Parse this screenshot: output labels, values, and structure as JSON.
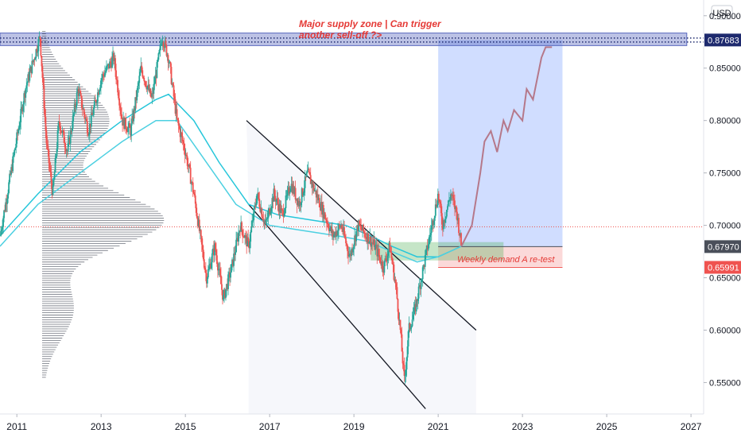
{
  "chart_data": {
    "type": "line",
    "title": "",
    "instrument_hint": "",
    "y_axis": {
      "unit_label": "USD",
      "ticks": [
        0.9,
        0.85,
        0.8,
        0.75,
        0.7,
        0.65,
        0.6,
        0.55
      ],
      "tick_labels": [
        "0.90000",
        "0.85000",
        "0.80000",
        "0.75000",
        "0.70000",
        "0.65000",
        "0.60000",
        "0.55000"
      ],
      "ylim": [
        0.52,
        0.915
      ]
    },
    "x_axis": {
      "ticks": [
        2011,
        2013,
        2015,
        2017,
        2019,
        2021,
        2023,
        2025,
        2027
      ],
      "tick_labels": [
        "2011",
        "2013",
        "2015",
        "2017",
        "2019",
        "2021",
        "2023",
        "2025",
        "2027"
      ],
      "xlim": [
        2010.6,
        2027.3
      ]
    },
    "price_series": {
      "name": "",
      "x": [
        2010.6,
        2010.9,
        2011.2,
        2011.55,
        2011.7,
        2011.85,
        2012.0,
        2012.2,
        2012.45,
        2012.7,
        2013.0,
        2013.3,
        2013.5,
        2013.7,
        2013.95,
        2014.2,
        2014.45,
        2014.6,
        2014.8,
        2015.0,
        2015.2,
        2015.5,
        2015.7,
        2015.9,
        2016.1,
        2016.3,
        2016.5,
        2016.7,
        2016.9,
        2017.1,
        2017.3,
        2017.5,
        2017.7,
        2017.9,
        2018.1,
        2018.3,
        2018.5,
        2018.7,
        2018.9,
        2019.1,
        2019.3,
        2019.5,
        2019.7,
        2019.85,
        2020.0,
        2020.1,
        2020.2,
        2020.3,
        2020.45,
        2020.6,
        2020.8,
        2021.0,
        2021.1,
        2021.3,
        2021.45,
        2021.55
      ],
      "y": [
        0.69,
        0.76,
        0.83,
        0.88,
        0.78,
        0.73,
        0.8,
        0.77,
        0.83,
        0.79,
        0.84,
        0.86,
        0.8,
        0.79,
        0.85,
        0.82,
        0.88,
        0.86,
        0.8,
        0.77,
        0.73,
        0.65,
        0.68,
        0.63,
        0.66,
        0.7,
        0.68,
        0.73,
        0.7,
        0.73,
        0.71,
        0.74,
        0.72,
        0.75,
        0.73,
        0.71,
        0.69,
        0.7,
        0.67,
        0.7,
        0.69,
        0.68,
        0.66,
        0.68,
        0.64,
        0.6,
        0.55,
        0.6,
        0.62,
        0.65,
        0.69,
        0.73,
        0.7,
        0.73,
        0.71,
        0.68
      ]
    },
    "projection_series": {
      "name": "",
      "x": [
        2021.55,
        2021.8,
        2022.0,
        2022.1,
        2022.25,
        2022.4,
        2022.55,
        2022.65,
        2022.8,
        2023.0,
        2023.1,
        2023.25,
        2023.45,
        2023.55,
        2023.7
      ],
      "y": [
        0.68,
        0.7,
        0.75,
        0.78,
        0.79,
        0.77,
        0.8,
        0.79,
        0.81,
        0.8,
        0.83,
        0.82,
        0.86,
        0.87,
        0.87
      ]
    },
    "moving_averages": [
      {
        "name": "",
        "color": "#26c6da",
        "x": [
          2010.6,
          2011.5,
          2012.5,
          2013.5,
          2014.3,
          2014.6,
          2015.2,
          2015.8,
          2016.5,
          2017.2,
          2018.0,
          2018.8,
          2019.4,
          2019.9,
          2020.5,
          2021.0,
          2021.55
        ],
        "y": [
          0.69,
          0.73,
          0.77,
          0.8,
          0.82,
          0.825,
          0.8,
          0.76,
          0.72,
          0.71,
          0.705,
          0.7,
          0.69,
          0.68,
          0.67,
          0.67,
          0.68
        ]
      },
      {
        "name": "",
        "color": "#4dd0e1",
        "x": [
          2010.6,
          2011.5,
          2012.5,
          2013.5,
          2014.3,
          2014.8,
          2015.5,
          2016.2,
          2017.0,
          2017.8,
          2018.6,
          2019.3,
          2019.9,
          2020.5,
          2021.0,
          2021.55
        ],
        "y": [
          0.68,
          0.72,
          0.75,
          0.78,
          0.8,
          0.8,
          0.76,
          0.72,
          0.7,
          0.695,
          0.69,
          0.685,
          0.675,
          0.665,
          0.67,
          0.68
        ]
      }
    ],
    "levels": [
      {
        "value": 0.87683,
        "label": "0.87683",
        "color": "#1e2a6e",
        "style": "dotted"
      },
      {
        "value": 0.6797,
        "label": "0.67970",
        "color": "#4a4f5a",
        "style": "solid"
      },
      {
        "value": 0.65991,
        "label": "0.65991",
        "color": "#ef5350",
        "style": "solid"
      },
      {
        "value": 0.6985,
        "label": "",
        "color": "#ef5350",
        "style": "dotted"
      }
    ],
    "zones": {
      "supply": {
        "x0": 2010.6,
        "x1": 2026.9,
        "y0": 0.8715,
        "y1": 0.8835
      },
      "demand": {
        "x0": 2019.4,
        "x1": 2022.55,
        "y0": 0.6665,
        "y1": 0.684
      },
      "target": {
        "x0": 2021.0,
        "x1": 2023.95,
        "y0": 0.6797,
        "y1": 0.8768
      },
      "stop": {
        "x0": 2021.0,
        "x1": 2023.95,
        "y0": 0.6605,
        "y1": 0.6797
      }
    },
    "channel": {
      "upper": {
        "x0": 2016.45,
        "y0": 0.8,
        "x1": 2021.9,
        "y1": 0.6
      },
      "lower": {
        "x0": 2016.5,
        "y0": 0.72,
        "x1": 2020.7,
        "y1": 0.525
      }
    },
    "annotations": [
      {
        "text": "Major supply zone | Can trigger",
        "role": "supply-note-line-1"
      },
      {
        "text": "another sell-off ?>",
        "role": "supply-note-line-2"
      },
      {
        "text": "Weekly demand A re-test",
        "role": "demand-note"
      }
    ],
    "grid": false,
    "legend": "none"
  }
}
